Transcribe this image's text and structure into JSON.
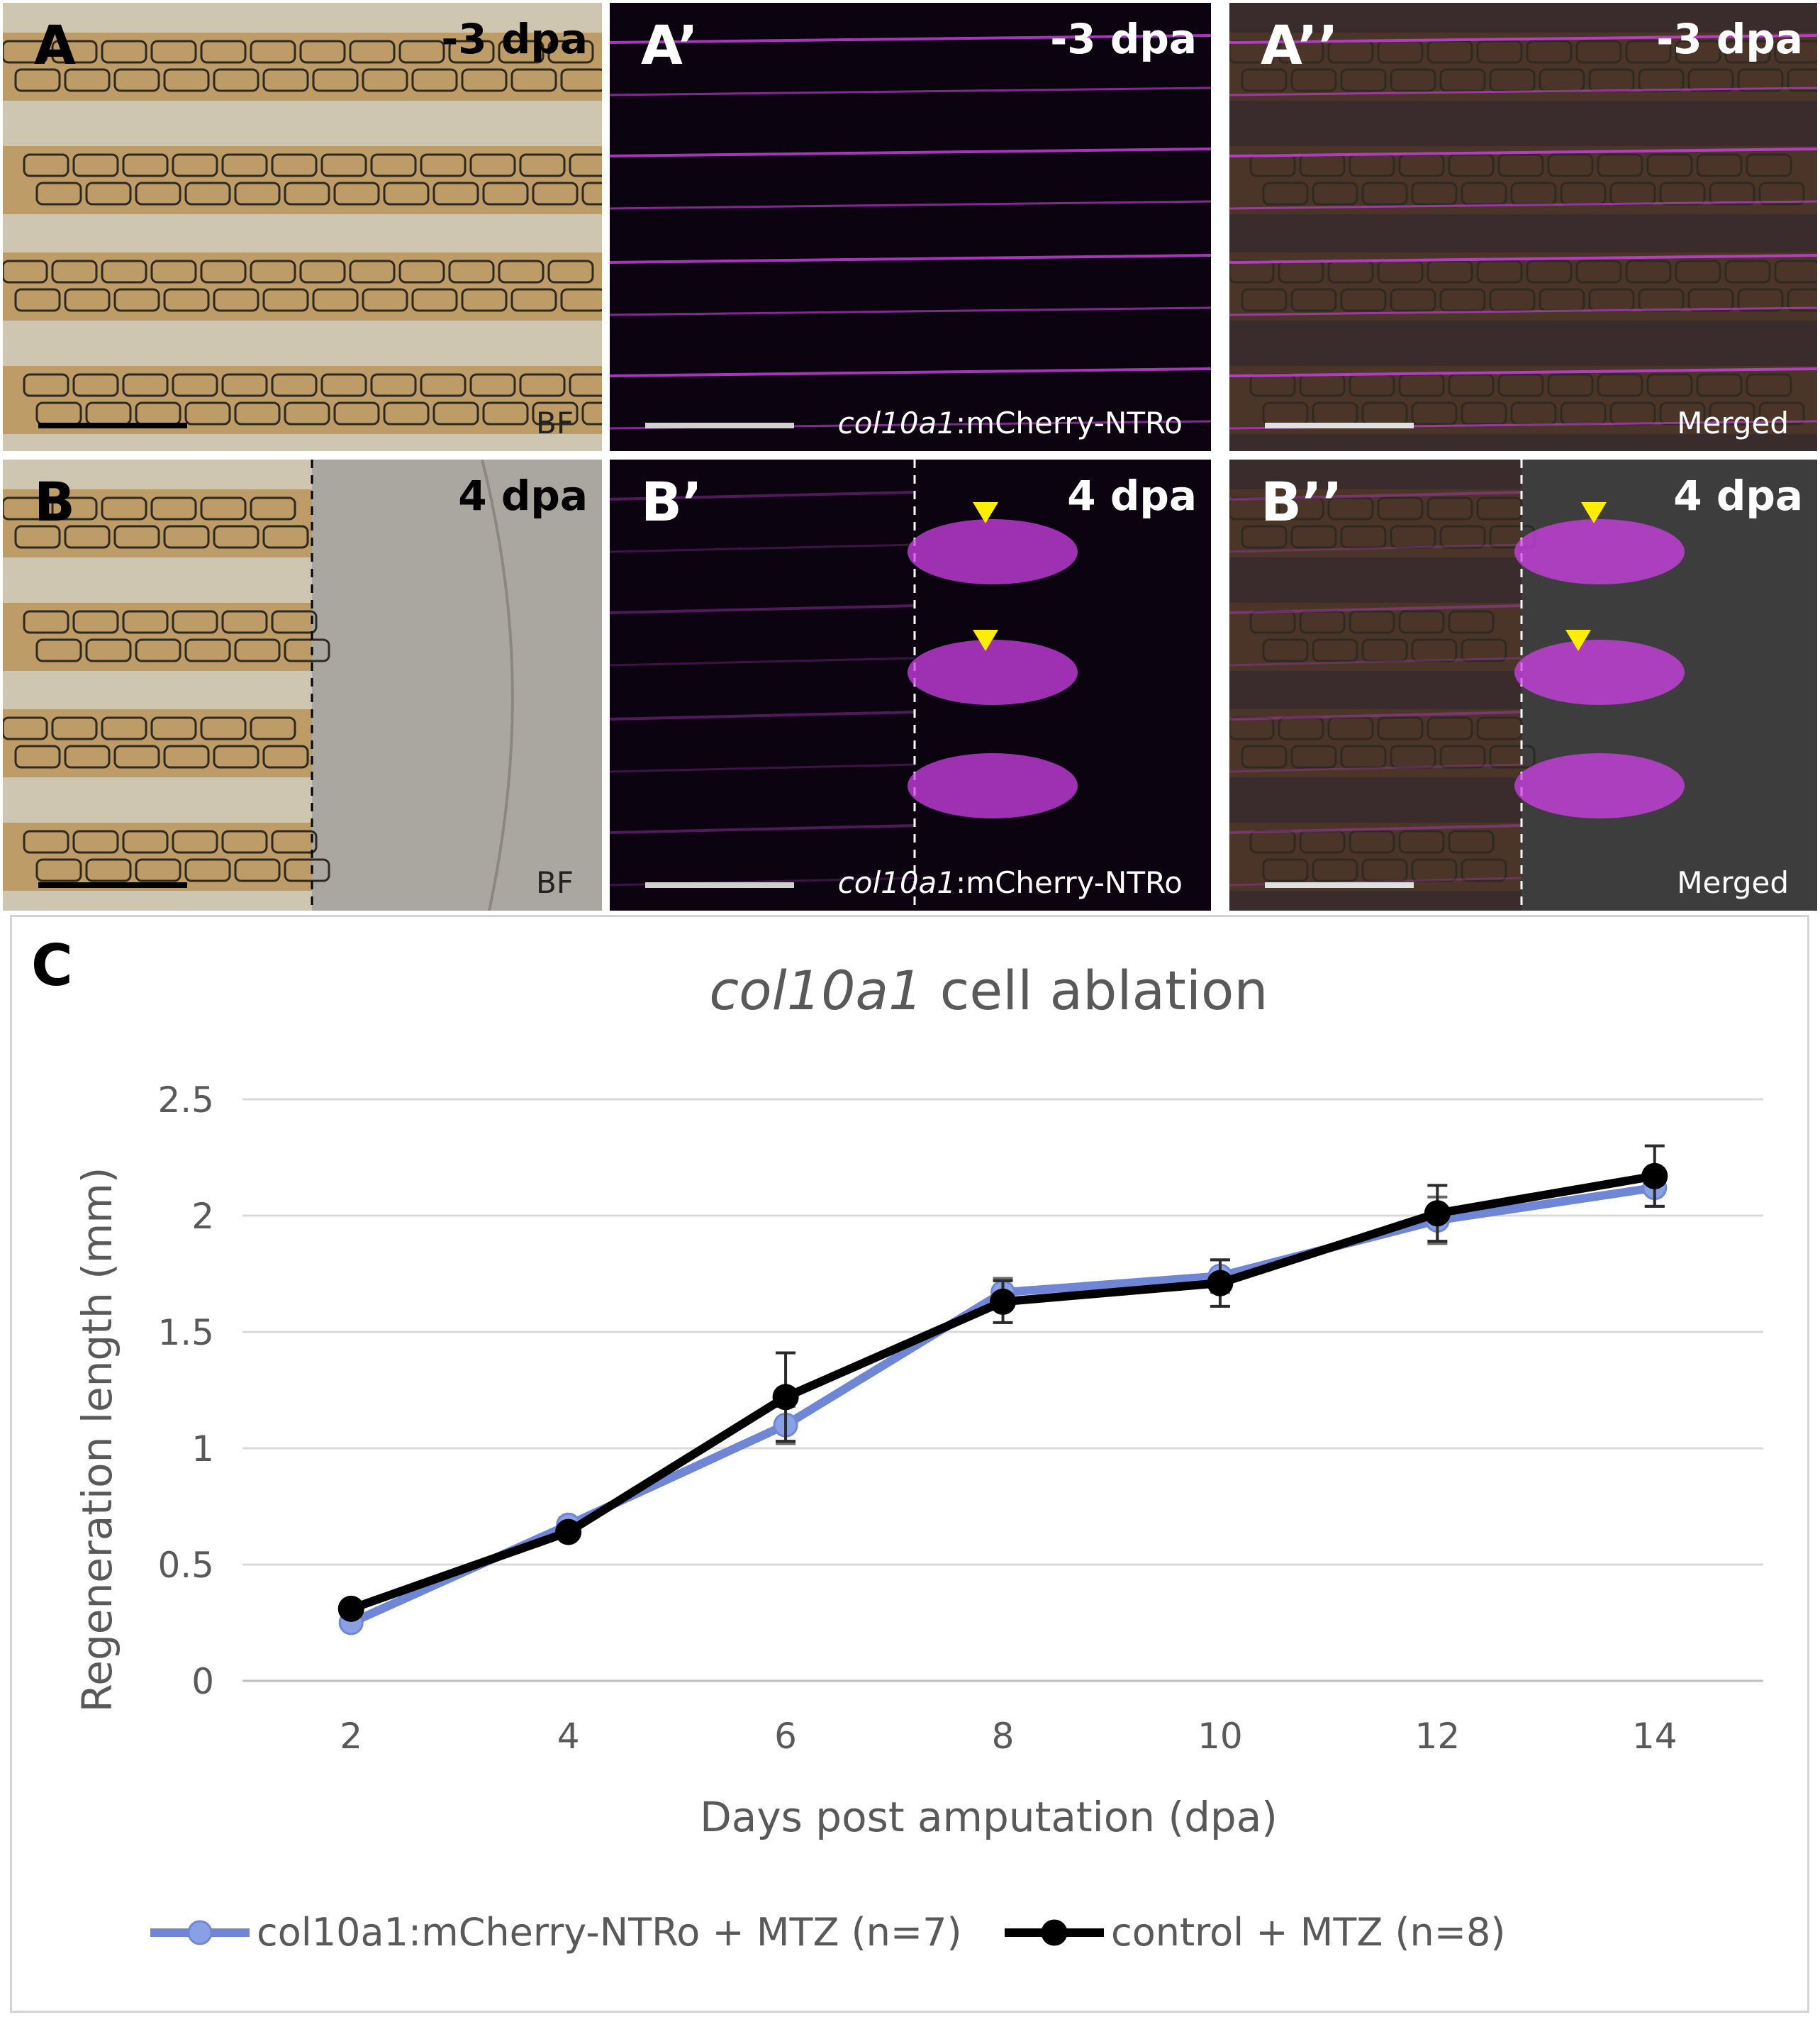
{
  "panels": [
    {
      "id": "A",
      "label": "A",
      "dpa": "-3 dpa",
      "channel": "BF",
      "kind": "bf"
    },
    {
      "id": "A1",
      "label": "A’",
      "dpa": "-3 dpa",
      "channel_italic": "col10a1",
      "channel": ":mCherry-NTRo",
      "kind": "fl"
    },
    {
      "id": "A2",
      "label": "A’’",
      "dpa": "-3 dpa",
      "channel": "Merged",
      "kind": "merged"
    },
    {
      "id": "B",
      "label": "B",
      "dpa": "4 dpa",
      "channel": "BF",
      "kind": "bf"
    },
    {
      "id": "B1",
      "label": "B’",
      "dpa": "4 dpa",
      "channel_italic": "col10a1",
      "channel": ":mCherry-NTRo",
      "kind": "fl"
    },
    {
      "id": "B2",
      "label": "B’’",
      "dpa": "4 dpa",
      "channel": "Merged",
      "kind": "merged"
    }
  ],
  "colors": {
    "bf_bg": "#cfc6b2",
    "pigment": "#b07a2a",
    "magenta": "#d040e8",
    "arrowhead": "#ffee00",
    "series1": "#6f86d6",
    "series2": "#000000",
    "grid": "#d9d9d9"
  },
  "chart_label": "C",
  "chart_data": {
    "type": "line",
    "title_italic": "col10a1",
    "title_rest": " cell ablation",
    "xlabel": "Days post amputation (dpa)",
    "ylabel": "Regeneration length (mm)",
    "x": [
      2,
      4,
      6,
      8,
      10,
      12,
      14
    ],
    "ylim": [
      0,
      2.5
    ],
    "yticks": [
      "0",
      "0.5",
      "1",
      "1.5",
      "2",
      "2.5"
    ],
    "xticks": [
      "2",
      "4",
      "6",
      "8",
      "10",
      "12",
      "14"
    ],
    "grid": "horizontal",
    "legend_position": "bottom",
    "series": [
      {
        "name": "col10a1:mCherry-NTRo + MTZ (n=7)",
        "values": [
          0.25,
          0.67,
          1.1,
          1.67,
          1.74,
          1.98,
          2.12
        ],
        "errors": [
          0.02,
          0.03,
          0.08,
          0.06,
          0.07,
          0.1,
          0.08
        ]
      },
      {
        "name": "control + MTZ (n=8)",
        "values": [
          0.31,
          0.64,
          1.22,
          1.63,
          1.71,
          2.01,
          2.17
        ],
        "errors": [
          0.02,
          0.03,
          0.19,
          0.09,
          0.1,
          0.12,
          0.13
        ]
      }
    ]
  }
}
